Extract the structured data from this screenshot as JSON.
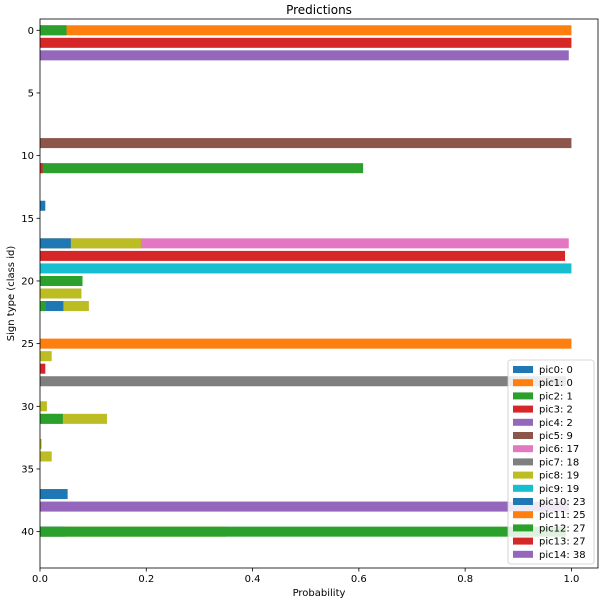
{
  "chart_data": {
    "type": "bar",
    "orientation": "horizontal",
    "stacking": "overlaid",
    "title": "Predictions",
    "xlabel": "Probability",
    "ylabel": "Sign type (class id)",
    "xlim": [
      0,
      1.05
    ],
    "ylim": [
      -0.9,
      42.9
    ],
    "y_inverted": true,
    "xticks": [
      "0.0",
      "0.2",
      "0.4",
      "0.6",
      "0.8",
      "1.0"
    ],
    "yticks": [
      "0",
      "5",
      "10",
      "15",
      "20",
      "25",
      "30",
      "35",
      "40"
    ],
    "grid": false,
    "legend_position": "lower right",
    "series": [
      {
        "name": "pic0: 0",
        "color": "#1f77b4",
        "points": [
          {
            "y": 0,
            "x": 0.005
          }
        ]
      },
      {
        "name": "pic1: 0",
        "color": "#ff7f0e",
        "points": [
          {
            "y": 0,
            "x": 1.0
          }
        ]
      },
      {
        "name": "pic2: 1",
        "color": "#2ca02c",
        "points": [
          {
            "y": 0,
            "x": 0.05
          }
        ]
      },
      {
        "name": "pic3: 2",
        "color": "#d62728",
        "points": [
          {
            "y": 1,
            "x": 1.0
          }
        ]
      },
      {
        "name": "pic4: 2",
        "color": "#9467bd",
        "points": [
          {
            "y": 2,
            "x": 0.995
          }
        ]
      },
      {
        "name": "pic5: 9",
        "color": "#8c564b",
        "points": [
          {
            "y": 9,
            "x": 1.0
          }
        ]
      },
      {
        "name": "pic6: 17",
        "color": "#e377c2",
        "points": [
          {
            "y": 17,
            "x": 0.995
          }
        ]
      },
      {
        "name": "pic7: 18",
        "color": "#7f7f7f",
        "points": [
          {
            "y": 28,
            "x": 0.99
          }
        ]
      },
      {
        "name": "pic8: 19",
        "color": "#bcbd22",
        "points": [
          {
            "y": 17,
            "x": 0.19
          },
          {
            "y": 21,
            "x": 0.078
          },
          {
            "y": 22,
            "x": 0.092
          },
          {
            "y": 26,
            "x": 0.022
          },
          {
            "y": 30,
            "x": 0.013
          },
          {
            "y": 31,
            "x": 0.126
          },
          {
            "y": 33,
            "x": 0.003
          },
          {
            "y": 34,
            "x": 0.022
          },
          {
            "y": 40,
            "x": 0.35
          }
        ]
      },
      {
        "name": "pic9: 19",
        "color": "#17becf",
        "points": [
          {
            "y": 19,
            "x": 1.0
          }
        ]
      },
      {
        "name": "pic10: 23",
        "color": "#1f77b4",
        "points": [
          {
            "y": 14,
            "x": 0.01
          },
          {
            "y": 17,
            "x": 0.058
          },
          {
            "y": 22,
            "x": 0.044
          },
          {
            "y": 37,
            "x": 0.052
          },
          {
            "y": 40,
            "x": 0.047
          }
        ]
      },
      {
        "name": "pic11: 25",
        "color": "#ff7f0e",
        "points": [
          {
            "y": 25,
            "x": 1.0
          }
        ]
      },
      {
        "name": "pic12: 27",
        "color": "#2ca02c",
        "points": [
          {
            "y": 11,
            "x": 0.608
          },
          {
            "y": 20,
            "x": 0.08
          },
          {
            "y": 22,
            "x": 0.011
          },
          {
            "y": 31,
            "x": 0.043
          },
          {
            "y": 40,
            "x": 0.99
          }
        ]
      },
      {
        "name": "pic13: 27",
        "color": "#d62728",
        "points": [
          {
            "y": 11,
            "x": 0.005
          },
          {
            "y": 18,
            "x": 0.988
          },
          {
            "y": 27,
            "x": 0.01
          }
        ]
      },
      {
        "name": "pic14: 38",
        "color": "#9467bd",
        "points": [
          {
            "y": 38,
            "x": 0.995
          }
        ]
      }
    ]
  }
}
